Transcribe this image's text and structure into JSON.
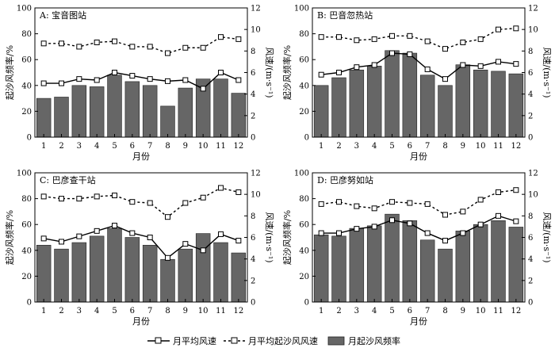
{
  "legend": {
    "avg_wind_speed": "月平均风速",
    "avg_sand_wind_speed": "月平均起沙风风速",
    "sand_wind_freq": "月起沙风频率"
  },
  "colors": {
    "bar_fill": "#666666",
    "bar_stroke": "#222222",
    "line": "#000000"
  },
  "chart_data": [
    {
      "type": "bar",
      "title": "A: 宝音图站",
      "xlabel": "月份",
      "ylabel_left": "起沙风频率/%",
      "ylabel_right": "风速/(m·s⁻¹)",
      "ylim_left": [
        0,
        100
      ],
      "ylim_right": [
        0,
        12
      ],
      "categories": [
        "1",
        "2",
        "3",
        "4",
        "5",
        "6",
        "7",
        "8",
        "9",
        "10",
        "11",
        "12"
      ],
      "series": [
        {
          "key": "sand_wind_freq",
          "axis": "left",
          "kind": "bar",
          "values": [
            30,
            31,
            40,
            39,
            48,
            43,
            40,
            24,
            38,
            45,
            45,
            34
          ]
        },
        {
          "key": "avg_wind_speed",
          "axis": "right",
          "kind": "solid-line",
          "values": [
            5.0,
            5.0,
            5.4,
            5.3,
            6.0,
            5.7,
            5.4,
            5.2,
            5.3,
            4.5,
            6.0,
            5.3
          ]
        },
        {
          "key": "avg_sand_wind_speed",
          "axis": "right",
          "kind": "dashed-line",
          "values": [
            8.7,
            8.7,
            8.4,
            8.8,
            8.9,
            8.4,
            8.4,
            7.8,
            8.3,
            8.3,
            9.3,
            9.1
          ]
        }
      ]
    },
    {
      "type": "bar",
      "title": "B: 巴音忽热站",
      "xlabel": "月份",
      "ylabel_left": "起沙风频率/%",
      "ylabel_right": "风速/(m·s⁻¹)",
      "ylim_left": [
        0,
        100
      ],
      "ylim_right": [
        0,
        12
      ],
      "categories": [
        "1",
        "2",
        "3",
        "4",
        "5",
        "6",
        "7",
        "8",
        "9",
        "10",
        "11",
        "12"
      ],
      "series": [
        {
          "key": "sand_wind_freq",
          "axis": "left",
          "kind": "bar",
          "values": [
            40,
            46,
            52,
            55,
            67,
            65,
            48,
            40,
            56,
            52,
            51,
            49
          ]
        },
        {
          "key": "avg_wind_speed",
          "axis": "right",
          "kind": "solid-line",
          "values": [
            5.8,
            6.0,
            6.5,
            6.7,
            7.8,
            7.7,
            6.3,
            5.4,
            6.7,
            6.6,
            7.0,
            6.8
          ]
        },
        {
          "key": "avg_sand_wind_speed",
          "axis": "right",
          "kind": "dashed-line",
          "values": [
            9.3,
            9.3,
            9.0,
            9.1,
            9.4,
            9.4,
            8.9,
            8.2,
            8.8,
            9.1,
            10.0,
            10.1
          ]
        }
      ]
    },
    {
      "type": "bar",
      "title": "C: 巴彦查干站",
      "xlabel": "月份",
      "ylabel_left": "起沙风频率/%",
      "ylabel_right": "风速/(m·s⁻¹)",
      "ylim_left": [
        0,
        100
      ],
      "ylim_right": [
        0,
        12
      ],
      "categories": [
        "1",
        "2",
        "3",
        "4",
        "5",
        "6",
        "7",
        "8",
        "9",
        "10",
        "11",
        "12"
      ],
      "series": [
        {
          "key": "sand_wind_freq",
          "axis": "left",
          "kind": "bar",
          "values": [
            44,
            41,
            46,
            51,
            57,
            50,
            44,
            33,
            41,
            53,
            46,
            38
          ]
        },
        {
          "key": "avg_wind_speed",
          "axis": "right",
          "kind": "solid-line",
          "values": [
            5.9,
            5.6,
            6.1,
            6.6,
            7.1,
            6.4,
            6.0,
            4.1,
            5.4,
            4.8,
            6.3,
            5.7
          ]
        },
        {
          "key": "avg_sand_wind_speed",
          "axis": "right",
          "kind": "dashed-line",
          "values": [
            9.8,
            9.6,
            9.6,
            9.8,
            9.9,
            9.3,
            9.2,
            7.9,
            9.2,
            9.7,
            10.6,
            10.2
          ]
        }
      ]
    },
    {
      "type": "bar",
      "title": "D: 巴彦努如站",
      "xlabel": "月份",
      "ylabel_left": "起沙风频率/%",
      "ylabel_right": "风速/(m·s⁻¹)",
      "ylim_left": [
        0,
        100
      ],
      "ylim_right": [
        0,
        12
      ],
      "categories": [
        "1",
        "2",
        "3",
        "4",
        "5",
        "6",
        "7",
        "8",
        "9",
        "10",
        "11",
        "12"
      ],
      "series": [
        {
          "key": "sand_wind_freq",
          "axis": "left",
          "kind": "bar",
          "values": [
            52,
            51,
            57,
            59,
            68,
            63,
            48,
            41,
            55,
            60,
            63,
            58
          ]
        },
        {
          "key": "avg_wind_speed",
          "axis": "right",
          "kind": "solid-line",
          "values": [
            6.4,
            6.4,
            6.8,
            7.0,
            7.6,
            7.3,
            6.4,
            5.7,
            6.4,
            7.2,
            8.0,
            7.5
          ]
        },
        {
          "key": "avg_sand_wind_speed",
          "axis": "right",
          "kind": "dashed-line",
          "values": [
            9.1,
            9.3,
            8.9,
            8.7,
            9.3,
            9.2,
            9.1,
            8.1,
            8.4,
            9.5,
            10.2,
            10.4
          ]
        }
      ]
    }
  ]
}
